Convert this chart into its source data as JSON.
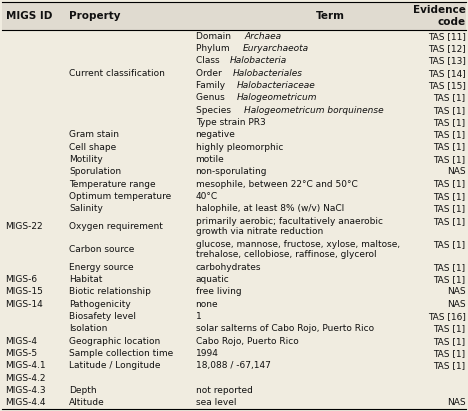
{
  "columns": [
    "MIGS ID",
    "Property",
    "Term",
    "Evidence\ncode"
  ],
  "rows": [
    {
      "migs": "",
      "property": "",
      "term_parts": [
        [
          "Domain ",
          false
        ],
        [
          "Archaea",
          true
        ]
      ],
      "evidence": "TAS [11]",
      "multiline": false
    },
    {
      "migs": "",
      "property": "",
      "term_parts": [
        [
          "Phylum ",
          false
        ],
        [
          "Euryarchaeota",
          true
        ]
      ],
      "evidence": "TAS [12]",
      "multiline": false
    },
    {
      "migs": "",
      "property": "",
      "term_parts": [
        [
          "Class ",
          false
        ],
        [
          "Halobacteria",
          true
        ]
      ],
      "evidence": "TAS [13]",
      "multiline": false
    },
    {
      "migs": "",
      "property": "Current classification",
      "term_parts": [
        [
          "Order ",
          false
        ],
        [
          "Halobacteriales",
          true
        ]
      ],
      "evidence": "TAS [14]",
      "multiline": false
    },
    {
      "migs": "",
      "property": "",
      "term_parts": [
        [
          "Family ",
          false
        ],
        [
          "Halobacteriaceae",
          true
        ]
      ],
      "evidence": "TAS [15]",
      "multiline": false
    },
    {
      "migs": "",
      "property": "",
      "term_parts": [
        [
          "Genus ",
          false
        ],
        [
          "Halogeometricum",
          true
        ]
      ],
      "evidence": "TAS [1]",
      "multiline": false
    },
    {
      "migs": "",
      "property": "",
      "term_parts": [
        [
          "Species ",
          false
        ],
        [
          "Halogeometricum borquinense",
          true
        ]
      ],
      "evidence": "TAS [1]",
      "multiline": false
    },
    {
      "migs": "",
      "property": "",
      "term_parts": [
        [
          "Type strain PR3",
          false
        ]
      ],
      "evidence": "TAS [1]",
      "multiline": false
    },
    {
      "migs": "",
      "property": "Gram stain",
      "term_parts": [
        [
          "negative",
          false
        ]
      ],
      "evidence": "TAS [1]",
      "multiline": false
    },
    {
      "migs": "",
      "property": "Cell shape",
      "term_parts": [
        [
          "highly pleomorphic",
          false
        ]
      ],
      "evidence": "TAS [1]",
      "multiline": false
    },
    {
      "migs": "",
      "property": "Motility",
      "term_parts": [
        [
          "motile",
          false
        ]
      ],
      "evidence": "TAS [1]",
      "multiline": false
    },
    {
      "migs": "",
      "property": "Sporulation",
      "term_parts": [
        [
          "non-sporulating",
          false
        ]
      ],
      "evidence": "NAS",
      "multiline": false
    },
    {
      "migs": "",
      "property": "Temperature range",
      "term_parts": [
        [
          "mesophile, between 22°C and 50°C",
          false
        ]
      ],
      "evidence": "TAS [1]",
      "multiline": false
    },
    {
      "migs": "",
      "property": "Optimum temperature",
      "term_parts": [
        [
          "40°C",
          false
        ]
      ],
      "evidence": "TAS [1]",
      "multiline": false
    },
    {
      "migs": "",
      "property": "Salinity",
      "term_parts": [
        [
          "halophile, at least 8% (w/v) NaCl",
          false
        ]
      ],
      "evidence": "TAS [1]",
      "multiline": false
    },
    {
      "migs": "MIGS-22",
      "property": "Oxygen requirement",
      "term_parts": [
        [
          "primarily aerobic; facultatively anaerobic",
          false
        ]
      ],
      "term_line2": "growth via nitrate reduction",
      "evidence": "TAS [1]",
      "multiline": true
    },
    {
      "migs": "",
      "property": "Carbon source",
      "term_parts": [
        [
          "glucose, mannose, fructose, xylose, maltose,",
          false
        ]
      ],
      "term_line2": "trehalose, cellobiose, raffinose, glycerol",
      "evidence": "TAS [1]",
      "multiline": true
    },
    {
      "migs": "",
      "property": "Energy source",
      "term_parts": [
        [
          "carbohydrates",
          false
        ]
      ],
      "evidence": "TAS [1]",
      "multiline": false
    },
    {
      "migs": "MIGS-6",
      "property": "Habitat",
      "term_parts": [
        [
          "aquatic",
          false
        ]
      ],
      "evidence": "TAS [1]",
      "multiline": false
    },
    {
      "migs": "MIGS-15",
      "property": "Biotic relationship",
      "term_parts": [
        [
          "free living",
          false
        ]
      ],
      "evidence": "NAS",
      "multiline": false
    },
    {
      "migs": "MIGS-14",
      "property": "Pathogenicity",
      "term_parts": [
        [
          "none",
          false
        ]
      ],
      "evidence": "NAS",
      "multiline": false
    },
    {
      "migs": "",
      "property": "Biosafety level",
      "term_parts": [
        [
          "1",
          false
        ]
      ],
      "evidence": "TAS [16]",
      "multiline": false
    },
    {
      "migs": "",
      "property": "Isolation",
      "term_parts": [
        [
          "solar salterns of Cabo Rojo, Puerto Rico",
          false
        ]
      ],
      "evidence": "TAS [1]",
      "multiline": false
    },
    {
      "migs": "MIGS-4",
      "property": "Geographic location",
      "term_parts": [
        [
          "Cabo Rojo, Puerto Rico",
          false
        ]
      ],
      "evidence": "TAS [1]",
      "multiline": false
    },
    {
      "migs": "MIGS-5",
      "property": "Sample collection time",
      "term_parts": [
        [
          "1994",
          false
        ]
      ],
      "evidence": "TAS [1]",
      "multiline": false
    },
    {
      "migs": "MIGS-4.1",
      "property": "Latitude / Longitude",
      "term_parts": [
        [
          "18,088 / -67,147",
          false
        ]
      ],
      "evidence": "TAS [1]",
      "multiline": false
    },
    {
      "migs": "MIGS-4.2",
      "property": "",
      "term_parts": [],
      "evidence": "",
      "multiline": false
    },
    {
      "migs": "MIGS-4.3",
      "property": "Depth",
      "term_parts": [
        [
          "not reported",
          false
        ]
      ],
      "evidence": "",
      "multiline": false
    },
    {
      "migs": "MIGS-4.4",
      "property": "Altitude",
      "term_parts": [
        [
          "sea level",
          false
        ]
      ],
      "evidence": "NAS",
      "multiline": false
    }
  ],
  "bg_color": "#f0ece0",
  "text_color": "#111111",
  "font_size": 6.5,
  "header_font_size": 7.5
}
